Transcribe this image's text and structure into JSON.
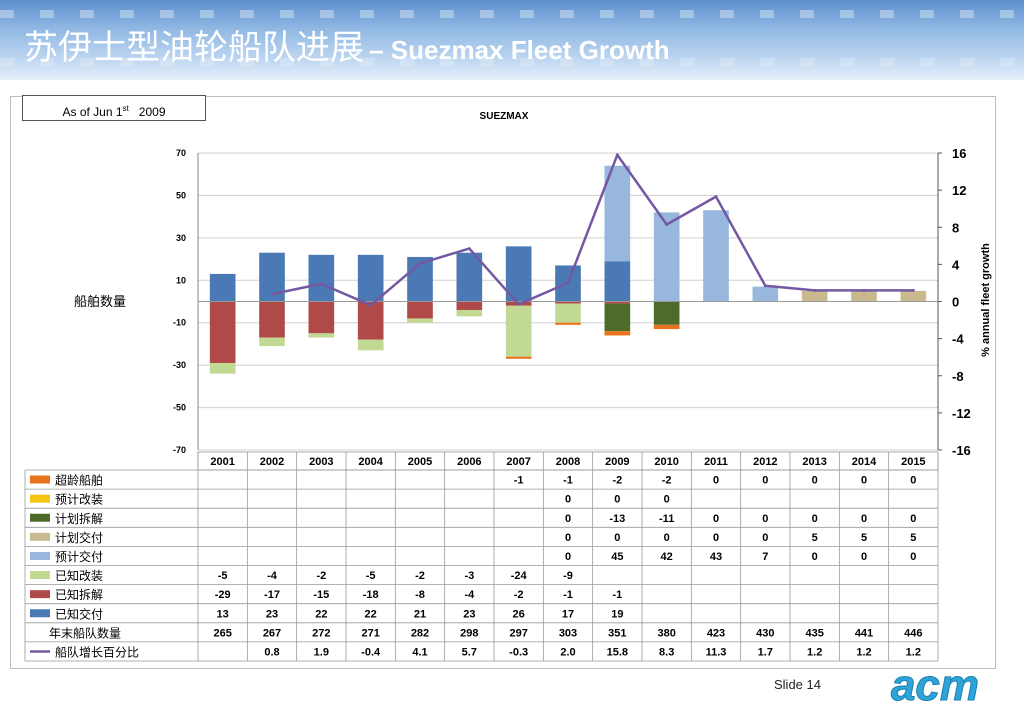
{
  "title_cn": "苏伊士型油轮船队进展",
  "title_en": "– Suezmax Fleet Growth",
  "as_of": {
    "prefix": "As of Jun 1",
    "sup": "st",
    "year": "2009"
  },
  "slide_label": "Slide 14",
  "logo_text": "acm",
  "colors": {
    "overage": "#e8731c",
    "conversion_planned": "#f6c414",
    "scrap_planned": "#4e6b2a",
    "delivery_planned": "#c9b98f",
    "delivery_projected": "#97b7dd",
    "conversion_known": "#c2d993",
    "scrap_known": "#b04a49",
    "delivery_known": "#4a79b6",
    "line": "#7459a2"
  },
  "chart_data": {
    "type": "bar",
    "title": "SUEZMAX",
    "ylabel": "船舶数量",
    "y2label": "% annual fleet growth",
    "ylim": [
      -70,
      70
    ],
    "y2lim": [
      -16,
      16
    ],
    "yticks": [
      "70",
      "50",
      "30",
      "10",
      "-10",
      "-30",
      "-50",
      "-70"
    ],
    "y2ticks": [
      "16",
      "12",
      "8",
      "4",
      "0",
      "-4",
      "-8",
      "-12",
      "-16"
    ],
    "categories": [
      "2001",
      "2002",
      "2003",
      "2004",
      "2005",
      "2006",
      "2007",
      "2008",
      "2009",
      "2010",
      "2011",
      "2012",
      "2013",
      "2014",
      "2015"
    ],
    "series": [
      {
        "key": "overage",
        "name": "超龄船舶",
        "kind": "bar",
        "values": [
          null,
          null,
          null,
          null,
          null,
          null,
          -1,
          -1,
          -2,
          -2,
          0,
          0,
          0,
          0,
          0
        ],
        "labels": [
          "",
          "",
          "",
          "",
          "",
          "",
          "-1",
          "-1",
          "-2",
          "-2",
          "0",
          "0",
          "0",
          "0",
          "0"
        ]
      },
      {
        "key": "conversion_planned",
        "name": "预计改装",
        "kind": "bar",
        "values": [
          null,
          null,
          null,
          null,
          null,
          null,
          null,
          0,
          0,
          0,
          null,
          null,
          null,
          null,
          null
        ],
        "labels": [
          "",
          "",
          "",
          "",
          "",
          "",
          "",
          "0",
          "0",
          "0",
          "",
          "",
          "",
          "",
          ""
        ]
      },
      {
        "key": "scrap_planned",
        "name": "计划拆解",
        "kind": "bar",
        "values": [
          null,
          null,
          null,
          null,
          null,
          null,
          null,
          0,
          -13,
          -11,
          0,
          0,
          0,
          0,
          0
        ],
        "labels": [
          "",
          "",
          "",
          "",
          "",
          "",
          "",
          "0",
          "-13",
          "-11",
          "0",
          "0",
          "0",
          "0",
          "0"
        ]
      },
      {
        "key": "delivery_planned",
        "name": "计划交付",
        "kind": "bar",
        "values": [
          null,
          null,
          null,
          null,
          null,
          null,
          null,
          0,
          0,
          0,
          0,
          0,
          5,
          5,
          5
        ],
        "labels": [
          "",
          "",
          "",
          "",
          "",
          "",
          "",
          "0",
          "0",
          "0",
          "0",
          "0",
          "5",
          "5",
          "5"
        ]
      },
      {
        "key": "delivery_projected",
        "name": "预计交付",
        "kind": "bar",
        "values": [
          null,
          null,
          null,
          null,
          null,
          null,
          null,
          0,
          45,
          42,
          43,
          7,
          0,
          0,
          0
        ],
        "labels": [
          "",
          "",
          "",
          "",
          "",
          "",
          "",
          "0",
          "45",
          "42",
          "43",
          "7",
          "0",
          "0",
          "0"
        ]
      },
      {
        "key": "conversion_known",
        "name": "已知改装",
        "kind": "bar",
        "values": [
          -5,
          -4,
          -2,
          -5,
          -2,
          -3,
          -24,
          -9,
          null,
          null,
          null,
          null,
          null,
          null,
          null
        ],
        "labels": [
          "-5",
          "-4",
          "-2",
          "-5",
          "-2",
          "-3",
          "-24",
          "-9",
          "",
          "",
          "",
          "",
          "",
          "",
          ""
        ]
      },
      {
        "key": "scrap_known",
        "name": "已知拆解",
        "kind": "bar",
        "values": [
          -29,
          -17,
          -15,
          -18,
          -8,
          -4,
          -2,
          -1,
          -1,
          null,
          null,
          null,
          null,
          null,
          null
        ],
        "labels": [
          "-29",
          "-17",
          "-15",
          "-18",
          "-8",
          "-4",
          "-2",
          "-1",
          "-1",
          "",
          "",
          "",
          "",
          "",
          ""
        ]
      },
      {
        "key": "delivery_known",
        "name": "已知交付",
        "kind": "bar",
        "values": [
          13,
          23,
          22,
          22,
          21,
          23,
          26,
          17,
          19,
          null,
          null,
          null,
          null,
          null,
          null
        ],
        "labels": [
          "13",
          "23",
          "22",
          "22",
          "21",
          "23",
          "26",
          "17",
          "19",
          "",
          "",
          "",
          "",
          "",
          ""
        ]
      },
      {
        "key": "fleet_size",
        "name": "年末船队数量",
        "kind": "table",
        "values": [
          265,
          267,
          272,
          271,
          282,
          298,
          297,
          303,
          351,
          380,
          423,
          430,
          435,
          441,
          446
        ],
        "labels": [
          "265",
          "267",
          "272",
          "271",
          "282",
          "298",
          "297",
          "303",
          "351",
          "380",
          "423",
          "430",
          "435",
          "441",
          "446"
        ]
      },
      {
        "key": "growth",
        "name": "船队增长百分比",
        "kind": "line",
        "values": [
          null,
          0.8,
          1.9,
          -0.4,
          4.1,
          5.7,
          -0.3,
          2.0,
          15.8,
          8.3,
          11.3,
          1.7,
          1.2,
          1.2,
          1.2
        ],
        "labels": [
          "",
          "0.8",
          "1.9",
          "-0.4",
          "4.1",
          "5.7",
          "-0.3",
          "2.0",
          "15.8",
          "8.3",
          "11.3",
          "1.7",
          "1.2",
          "1.2",
          "1.2"
        ]
      }
    ]
  }
}
